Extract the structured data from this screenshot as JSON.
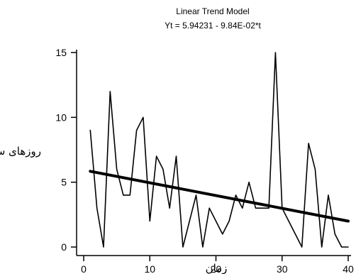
{
  "chart_data": {
    "type": "line",
    "title": "Linear Trend Model",
    "subtitle": "Yt = 5.94231 - 9.84E-02*t",
    "xlabel": "زمان",
    "ylabel": "روزهای سرد",
    "xlim": [
      0,
      40
    ],
    "ylim": [
      0,
      15
    ],
    "xticks": [
      0,
      10,
      20,
      30,
      40
    ],
    "yticks": [
      0,
      5,
      10,
      15
    ],
    "grid": false,
    "series": [
      {
        "role": "actual",
        "x": [
          1,
          2,
          3,
          4,
          5,
          6,
          7,
          8,
          9,
          10,
          11,
          12,
          13,
          14,
          15,
          16,
          17,
          18,
          19,
          20,
          21,
          22,
          23,
          24,
          25,
          26,
          27,
          28,
          29,
          30,
          31,
          32,
          33,
          34,
          35,
          36,
          37,
          38,
          39,
          40
        ],
        "values": [
          9,
          3,
          0,
          12,
          6,
          4,
          4,
          9,
          10,
          2,
          7,
          6,
          3,
          7,
          0,
          2,
          4,
          0,
          3,
          2,
          1,
          2,
          4,
          3,
          5,
          3,
          3,
          3,
          15,
          3,
          2,
          1,
          0,
          8,
          6,
          0,
          4,
          1,
          0,
          0
        ]
      },
      {
        "role": "trend",
        "x": [
          1,
          40
        ],
        "values": [
          5.84,
          2.0
        ]
      }
    ]
  }
}
